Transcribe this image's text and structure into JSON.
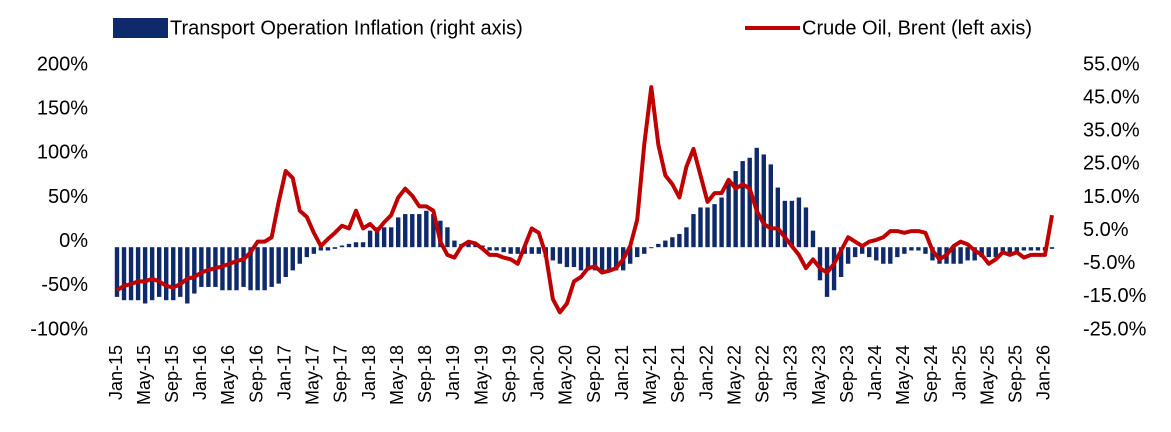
{
  "chart_data": {
    "type": "bar+line",
    "categories": [
      "Jan-15",
      null,
      null,
      null,
      "May-15",
      null,
      null,
      null,
      "Sep-15",
      null,
      null,
      null,
      "Jan-16",
      null,
      null,
      null,
      "May-16",
      null,
      null,
      null,
      "Sep-16",
      null,
      null,
      null,
      "Jan-17",
      null,
      null,
      null,
      "May-17",
      null,
      null,
      null,
      "Sep-17",
      null,
      null,
      null,
      "Jan-18",
      null,
      null,
      null,
      "May-18",
      null,
      null,
      null,
      "Sep-18",
      null,
      null,
      null,
      "Jan-19",
      null,
      null,
      null,
      "May-19",
      null,
      null,
      null,
      "Sep-19",
      null,
      null,
      null,
      "Jan-20",
      null,
      null,
      null,
      "May-20",
      null,
      null,
      null,
      "Sep-20",
      null,
      null,
      null,
      "Jan-21",
      null,
      null,
      null,
      "May-21",
      null,
      null,
      null,
      "Sep-21",
      null,
      null,
      null,
      "Jan-22",
      null,
      null,
      null,
      "May-22",
      null,
      null,
      null,
      "Sep-22",
      null,
      null,
      null,
      "Jan-23",
      null,
      null,
      null,
      "May-23",
      null,
      null,
      null,
      "Sep-23",
      null,
      null,
      null,
      "Jan-24",
      null,
      null,
      null,
      "May-24",
      null,
      null,
      null,
      "Sep-24",
      null,
      null,
      null,
      "Jan-25",
      null,
      null,
      null,
      "May-25",
      null,
      null,
      null,
      "Sep-25",
      null,
      null,
      null,
      "Jan-26",
      null
    ],
    "series": [
      {
        "name": "Transport Operation Inflation (right axis)",
        "type": "bar",
        "axis": "y2",
        "color": "#0f2a6b",
        "values": [
          -15,
          -16,
          -16,
          -16,
          -17,
          -16,
          -15,
          -16,
          -16,
          -15,
          -17,
          -14,
          -12,
          -12,
          -12,
          -13,
          -13,
          -13,
          -12,
          -13,
          -13,
          -13,
          -12,
          -11,
          -9,
          -7,
          -5,
          -3,
          -2,
          -1,
          -1,
          -0.5,
          0.5,
          1,
          1.5,
          1.5,
          5,
          6,
          6,
          6,
          9,
          10,
          10,
          10,
          11,
          10,
          8,
          6,
          2,
          1,
          1,
          1,
          0.5,
          -1,
          -1,
          -1.5,
          -2,
          -2,
          -2,
          -2,
          -2,
          -3,
          -4,
          -5,
          -6,
          -6,
          -7,
          -7,
          -7,
          -7,
          -7,
          -7,
          -7,
          -5,
          -3,
          -2,
          0,
          1,
          2,
          3,
          4,
          6,
          10,
          12,
          12,
          13,
          15,
          20,
          23,
          26,
          27,
          30,
          28,
          25,
          18,
          14,
          14,
          15,
          12,
          5,
          -10,
          -15,
          -13,
          -9,
          -5,
          -3,
          -2,
          -3,
          -4,
          -5,
          -5,
          -3,
          -2,
          -1,
          -1,
          -2,
          -4,
          -5,
          -5,
          -5,
          -5,
          -4,
          -4,
          -3,
          -3,
          -3,
          -2,
          -2,
          -2,
          -1,
          -1,
          -1,
          -1,
          -0.5
        ]
      },
      {
        "name": "Crude Oil, Brent (left axis)",
        "type": "line",
        "color": "#c00000",
        "values": [
          -55,
          -50,
          -48,
          -45,
          -45,
          -42,
          -45,
          -50,
          -52,
          -48,
          -42,
          -40,
          -35,
          -32,
          -30,
          -28,
          -25,
          -22,
          -20,
          -12,
          0,
          0,
          5,
          45,
          80,
          72,
          35,
          28,
          10,
          -5,
          3,
          10,
          18,
          15,
          35,
          15,
          20,
          12,
          22,
          30,
          50,
          60,
          52,
          40,
          40,
          35,
          0,
          -15,
          -18,
          -5,
          0,
          -2,
          -8,
          -15,
          -15,
          -18,
          -20,
          -25,
          -5,
          15,
          10,
          -15,
          -65,
          -80,
          -70,
          -45,
          -40,
          -30,
          -28,
          -35,
          -33,
          -30,
          -20,
          -5,
          25,
          110,
          175,
          110,
          75,
          65,
          50,
          85,
          105,
          75,
          45,
          55,
          55,
          70,
          60,
          65,
          60,
          35,
          20,
          15,
          15,
          5,
          -5,
          -15,
          -30,
          -20,
          -30,
          -35,
          -25,
          -10,
          5,
          0,
          -5,
          0,
          2,
          5,
          12,
          12,
          10,
          12,
          12,
          10,
          -10,
          -20,
          -15,
          -5,
          0,
          -3,
          -10,
          -15,
          -25,
          -20,
          -12,
          -15,
          -12,
          -18,
          -15,
          -15,
          -15,
          30
        ]
      }
    ],
    "ylim": [
      -100,
      200
    ],
    "yticks": [
      {
        "value": -100,
        "label": "-100%"
      },
      {
        "value": -50,
        "label": "-50%"
      },
      {
        "value": 0,
        "label": "0%"
      },
      {
        "value": 50,
        "label": "50%"
      },
      {
        "value": 100,
        "label": "100%"
      },
      {
        "value": 150,
        "label": "150%"
      },
      {
        "value": 200,
        "label": "200%"
      }
    ],
    "y2lim": [
      -25,
      55
    ],
    "y2ticks": [
      {
        "value": -25,
        "label": "-25.0%"
      },
      {
        "value": -15,
        "label": "-15.0%"
      },
      {
        "value": -5,
        "label": "-5.0%"
      },
      {
        "value": 5,
        "label": "5.0%"
      },
      {
        "value": 15,
        "label": "15.0%"
      },
      {
        "value": 25,
        "label": "25.0%"
      },
      {
        "value": 35,
        "label": "35.0%"
      },
      {
        "value": 45,
        "label": "45.0%"
      },
      {
        "value": 55,
        "label": "55.0%"
      }
    ]
  }
}
